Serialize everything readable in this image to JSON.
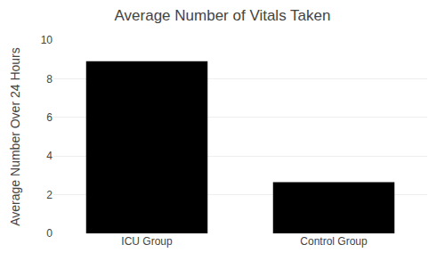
{
  "chart_data": {
    "type": "bar",
    "title": "Average Number of Vitals Taken",
    "categories": [
      "ICU Group",
      "Control Group"
    ],
    "values": [
      8.9,
      2.65
    ],
    "color": "#000000",
    "ylabel": "Average Number Over 24 Hours",
    "ylim": [
      0,
      10
    ],
    "yticks": [
      0,
      2,
      4,
      6,
      8,
      10
    ],
    "grid": true
  }
}
